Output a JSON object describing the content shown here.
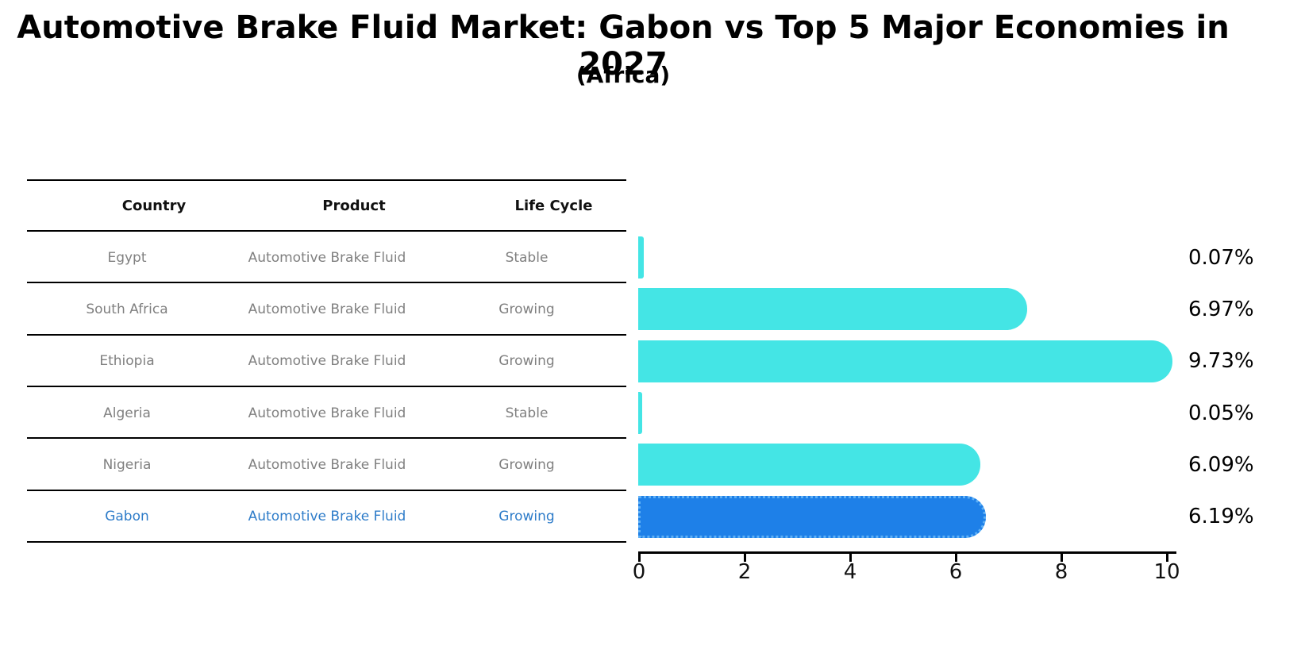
{
  "header": {
    "title": "Automotive Brake Fluid Market: Gabon vs Top 5 Major Economies in 2027",
    "subtitle": "(Africa)"
  },
  "table": {
    "columns": [
      "Country",
      "Product",
      "Life Cycle"
    ],
    "rows": [
      {
        "country": "Egypt",
        "product": "Automotive Brake Fluid",
        "life_cycle": "Stable",
        "highlighted": false
      },
      {
        "country": "South Africa",
        "product": "Automotive Brake Fluid",
        "life_cycle": "Growing",
        "highlighted": false
      },
      {
        "country": "Ethiopia",
        "product": "Automotive Brake Fluid",
        "life_cycle": "Growing",
        "highlighted": false
      },
      {
        "country": "Algeria",
        "product": "Automotive Brake Fluid",
        "life_cycle": "Stable",
        "highlighted": false
      },
      {
        "country": "Nigeria",
        "product": "Automotive Brake Fluid",
        "life_cycle": "Growing",
        "highlighted": false
      },
      {
        "country": "Gabon",
        "product": "Automotive Brake Fluid",
        "life_cycle": "Growing",
        "highlighted": true
      }
    ]
  },
  "chart_data": {
    "type": "bar",
    "orientation": "horizontal",
    "title": "Automotive Brake Fluid Market: Gabon vs Top 5 Major Economies in 2027 (Africa)",
    "categories": [
      "Egypt",
      "South Africa",
      "Ethiopia",
      "Algeria",
      "Nigeria",
      "Gabon"
    ],
    "values": [
      0.07,
      6.97,
      9.73,
      0.05,
      6.09,
      6.19
    ],
    "value_labels": [
      "0.07%",
      "6.97%",
      "9.73%",
      "0.05%",
      "6.09%",
      "6.19%"
    ],
    "xlim": [
      0,
      10.2
    ],
    "xticks": [
      0,
      2,
      4,
      6,
      8,
      10
    ],
    "grid": false,
    "legend": false,
    "bar_color": "#44E5E5",
    "highlight_color": "#1E80E8",
    "highlight_index": 5,
    "highlight_text_color": "#2E7CC9",
    "row_text_color": "#808080"
  }
}
